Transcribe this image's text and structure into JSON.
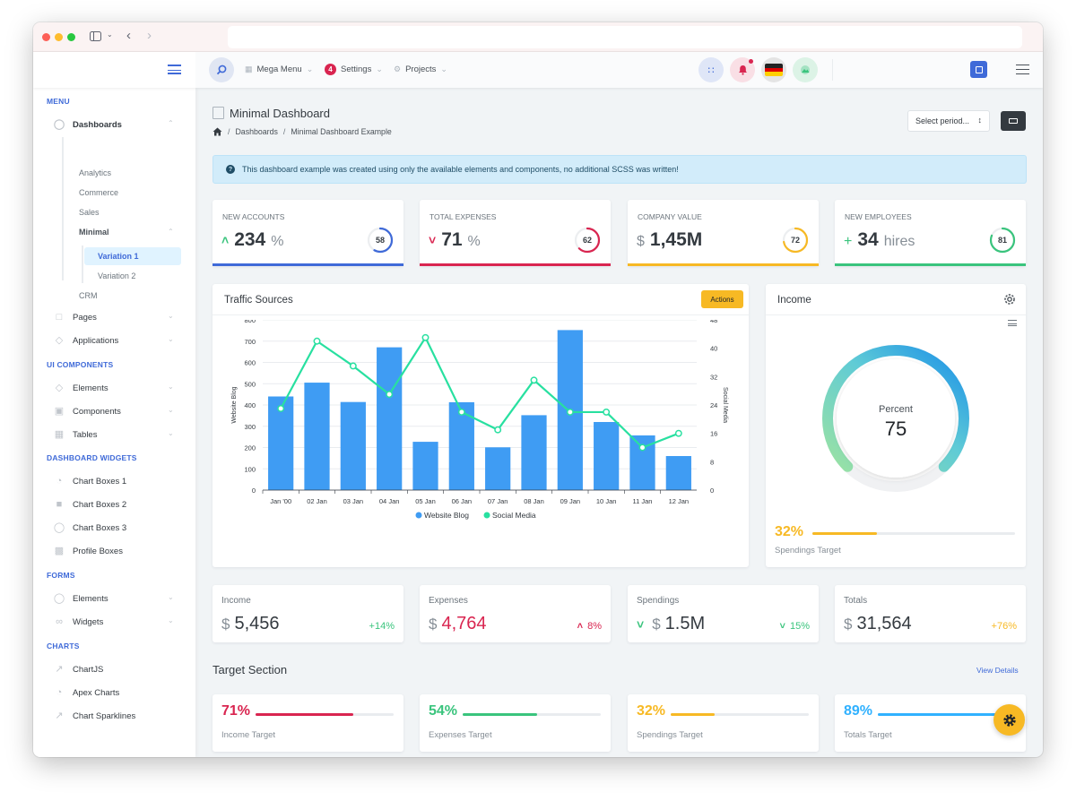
{
  "header": {
    "mega_menu": "Mega Menu",
    "settings": "Settings",
    "settings_badge": "4",
    "projects": "Projects"
  },
  "sidebar": {
    "menu_heading": "MENU",
    "dashboards": "Dashboards",
    "dash_sub": [
      "Analytics",
      "Commerce",
      "Sales",
      "Minimal"
    ],
    "minimal_sub": [
      "Variation 1",
      "Variation 2"
    ],
    "crm": "CRM",
    "pages": "Pages",
    "applications": "Applications",
    "ui_heading": "UI COMPONENTS",
    "ui_items": [
      "Elements",
      "Components",
      "Tables"
    ],
    "widgets_heading": "DASHBOARD WIDGETS",
    "widget_items": [
      "Chart Boxes 1",
      "Chart Boxes 2",
      "Chart Boxes 3",
      "Profile Boxes"
    ],
    "forms_heading": "FORMS",
    "form_items": [
      "Elements",
      "Widgets"
    ],
    "charts_heading": "CHARTS",
    "chart_items": [
      "ChartJS",
      "Apex Charts",
      "Chart Sparklines"
    ]
  },
  "page": {
    "title": "Minimal Dashboard",
    "breadcrumb": [
      "Dashboards",
      "Minimal Dashboard Example"
    ],
    "select_period": "Select period...",
    "alert": "This dashboard example was created using only the available elements and components, no additional SCSS was written!"
  },
  "stats": [
    {
      "label": "NEW ACCOUNTS",
      "prefix": "",
      "value": "234",
      "unit": "%",
      "ring": "58",
      "ring_pct": 0.58,
      "color": "#3f6ad8",
      "arrow": "up"
    },
    {
      "label": "TOTAL EXPENSES",
      "prefix": "",
      "value": "71",
      "unit": "%",
      "ring": "62",
      "ring_pct": 0.62,
      "color": "#d92550",
      "arrow": "down"
    },
    {
      "label": "COMPANY VALUE",
      "prefix": "$",
      "value": "1,45M",
      "unit": "",
      "ring": "72",
      "ring_pct": 0.72,
      "color": "#f7b924",
      "arrow": ""
    },
    {
      "label": "NEW EMPLOYEES",
      "prefix": "+",
      "value": "34",
      "unit": "hires",
      "ring": "81",
      "ring_pct": 0.81,
      "color": "#3ac47d",
      "arrow": ""
    }
  ],
  "traffic": {
    "title": "Traffic Sources",
    "actions": "Actions"
  },
  "chart_data": {
    "type": "bar",
    "categories": [
      "Jan '00",
      "02 Jan",
      "03 Jan",
      "04 Jan",
      "05 Jan",
      "06 Jan",
      "07 Jan",
      "08 Jan",
      "09 Jan",
      "10 Jan",
      "11 Jan",
      "12 Jan"
    ],
    "series": [
      {
        "name": "Website Blog",
        "type": "bar",
        "axis": "left",
        "values": [
          440,
          505,
          414,
          671,
          227,
          413,
          201,
          352,
          752,
          320,
          257,
          160
        ],
        "color": "#3f9cf3"
      },
      {
        "name": "Social Media",
        "type": "line",
        "axis": "right",
        "values": [
          23,
          42,
          35,
          27,
          43,
          22,
          17,
          31,
          22,
          22,
          12,
          16
        ],
        "color": "#28e0a0"
      }
    ],
    "ylabel": "Website Blog",
    "y2label": "Social Media",
    "ylim": [
      0,
      800
    ],
    "y2lim": [
      0,
      48
    ],
    "yticks": [
      0,
      100,
      200,
      300,
      400,
      500,
      600,
      700,
      800
    ],
    "y2ticks": [
      0,
      8,
      16,
      24,
      32,
      40,
      48
    ],
    "grid": true,
    "legend": "bottom"
  },
  "income": {
    "title": "Income",
    "gauge_label": "Percent",
    "gauge_value": "75",
    "gauge_pct": 0.75,
    "target_pct": "32%",
    "target_fill": 0.32,
    "target_label": "Spendings Target"
  },
  "summary": [
    {
      "label": "Income",
      "cur": "$",
      "value": "5,456",
      "change": "+14%",
      "color": "#3ac47d",
      "vcolor": "#343a40",
      "arrow": ""
    },
    {
      "label": "Expenses",
      "cur": "$",
      "value": "4,764",
      "change": "8%",
      "color": "#d92550",
      "vcolor": "#d92550",
      "arrow": "up"
    },
    {
      "label": "Spendings",
      "cur": "$",
      "value": "1.5M",
      "change": "15%",
      "color": "#3ac47d",
      "vcolor": "#343a40",
      "arrow": "down"
    },
    {
      "label": "Totals",
      "cur": "$",
      "value": "31,564",
      "change": "+76%",
      "color": "#f7b924",
      "vcolor": "#343a40",
      "arrow": ""
    }
  ],
  "targets": {
    "title": "Target Section",
    "view_details": "View Details",
    "items": [
      {
        "pct": "71%",
        "fill": 0.71,
        "label": "Income Target",
        "color": "#d92550"
      },
      {
        "pct": "54%",
        "fill": 0.54,
        "label": "Expenses Target",
        "color": "#3ac47d"
      },
      {
        "pct": "32%",
        "fill": 0.32,
        "label": "Spendings Target",
        "color": "#f7b924"
      },
      {
        "pct": "89%",
        "fill": 0.89,
        "label": "Totals Target",
        "color": "#30b1ff"
      }
    ]
  }
}
